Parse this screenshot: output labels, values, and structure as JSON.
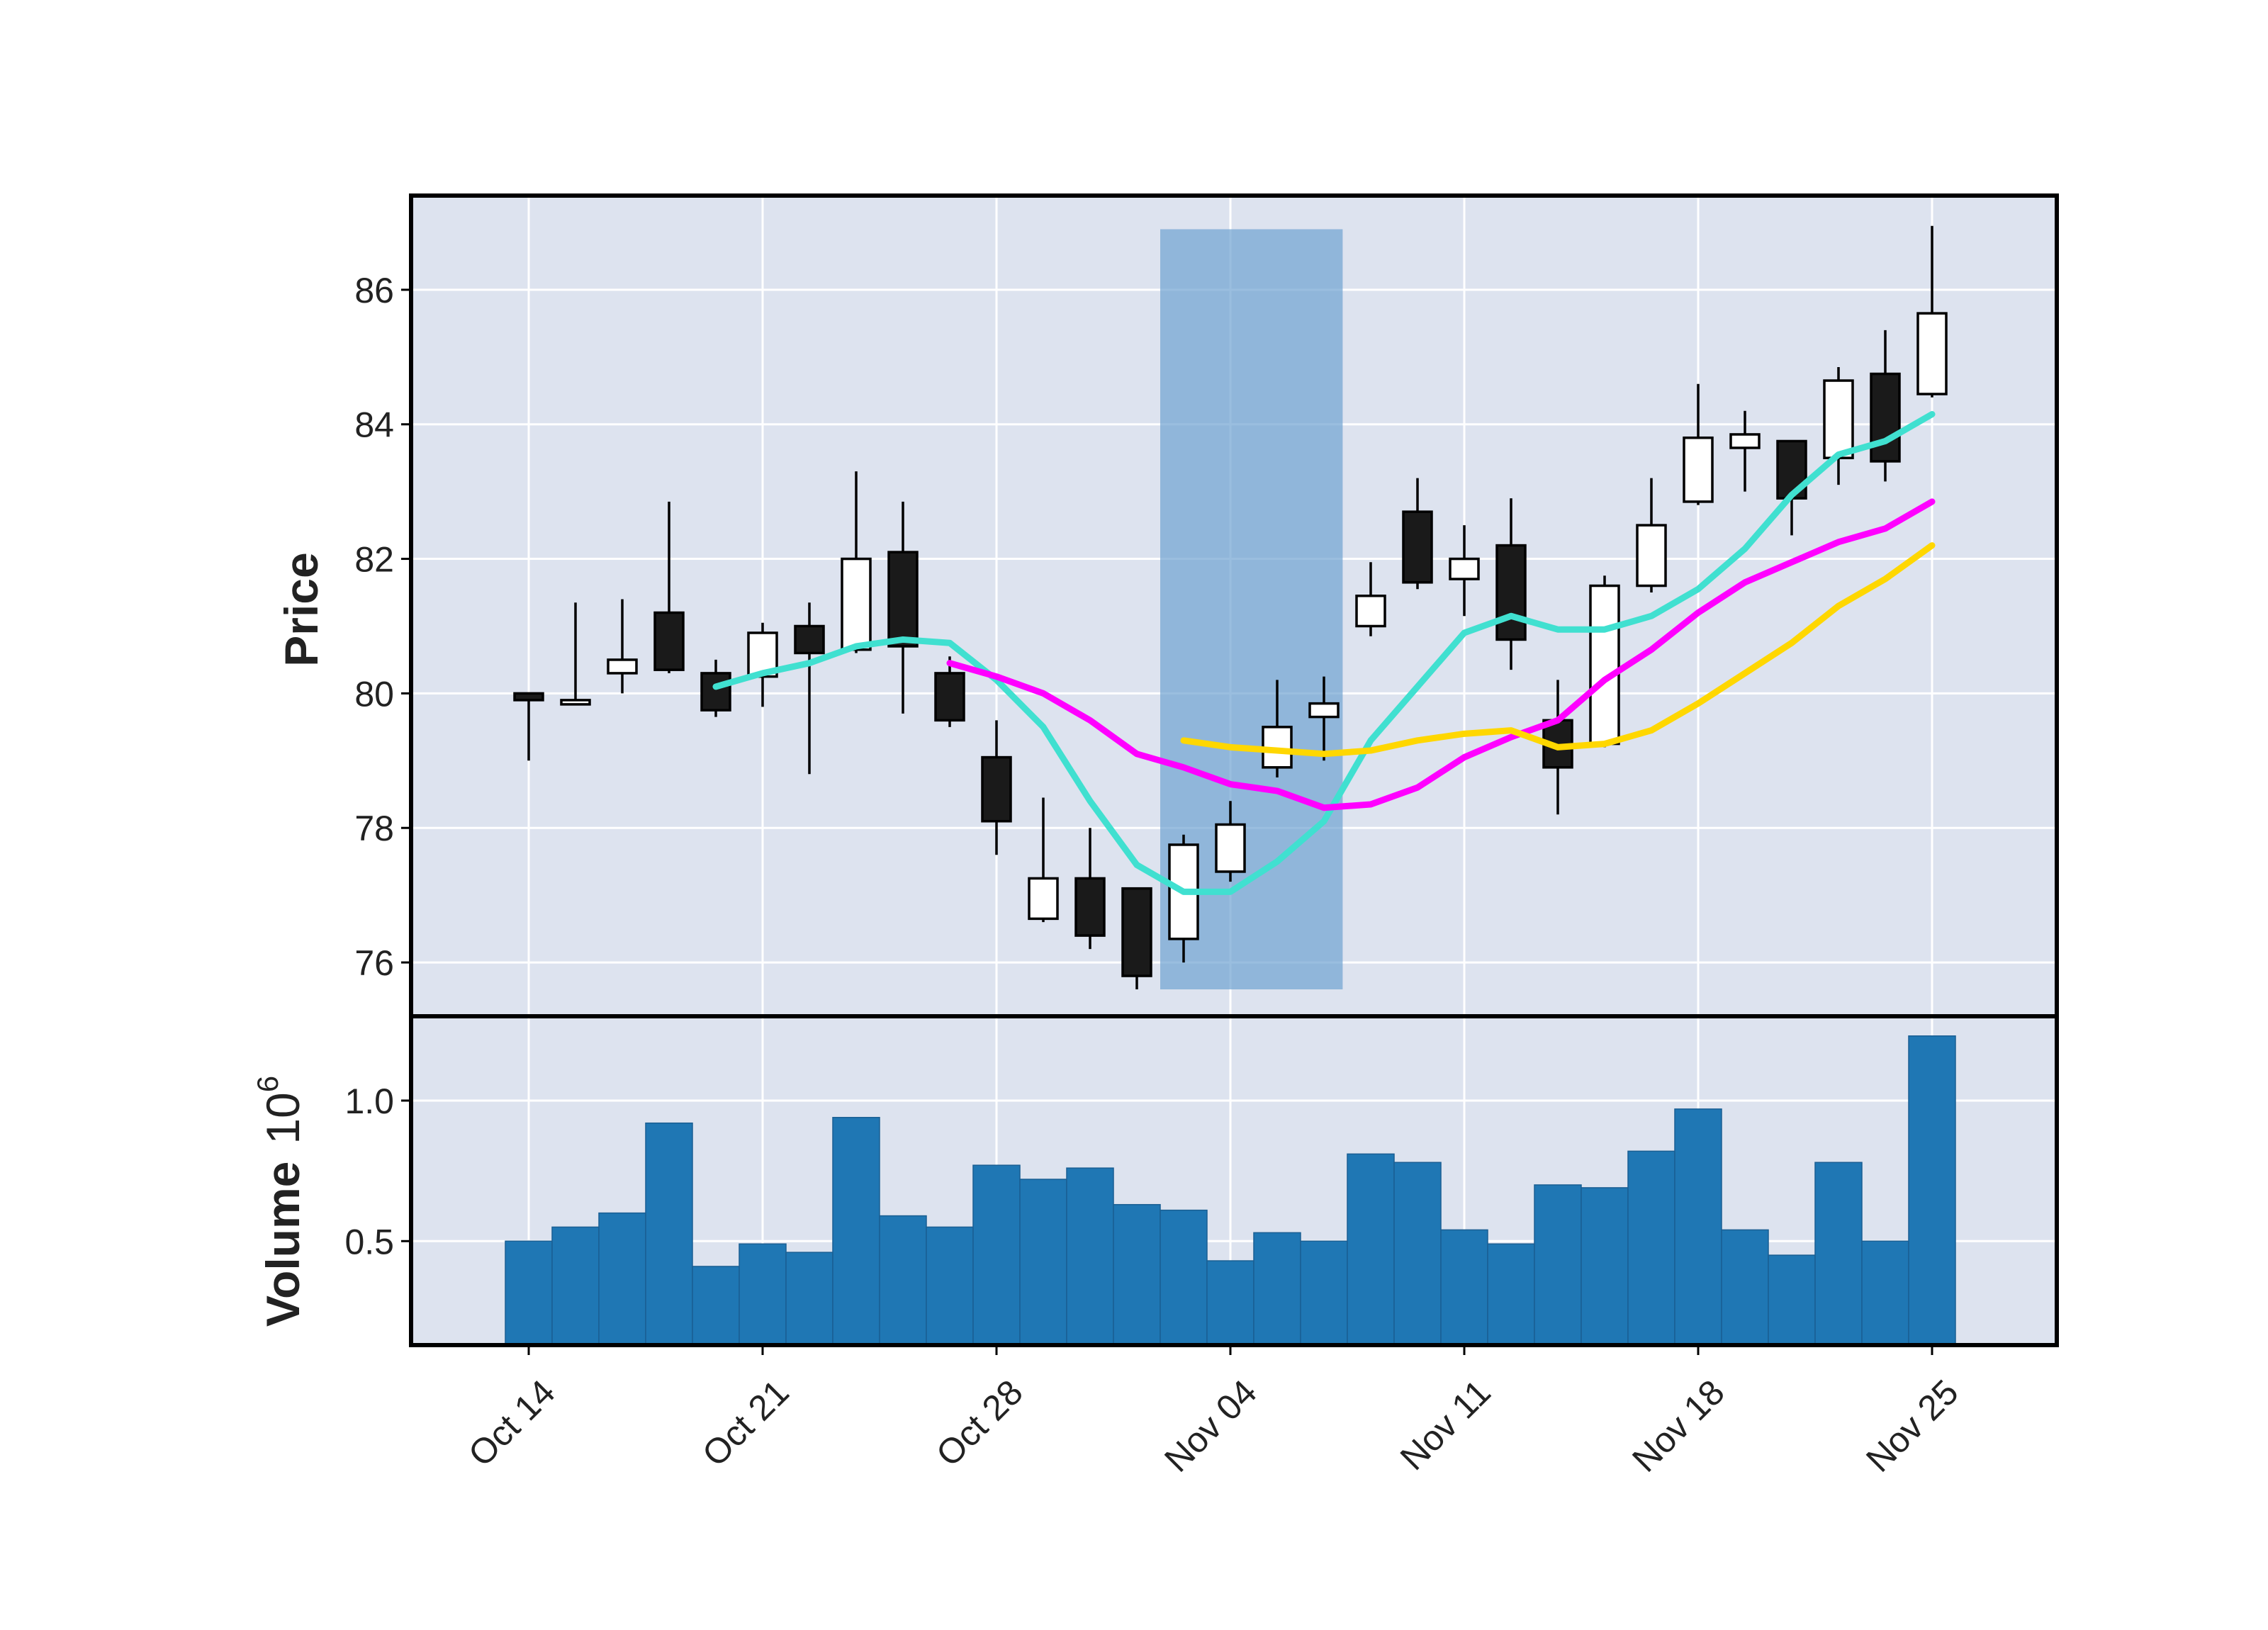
{
  "chart_data": {
    "type": "candlestick",
    "price_panel": {
      "ylabel": "Price",
      "ylim": [
        75.2,
        87.4
      ],
      "yticks": [
        76,
        78,
        80,
        82,
        84,
        86
      ]
    },
    "volume_panel": {
      "ylabel": "Volume",
      "ylabel_exponent_base": "10",
      "ylabel_exponent": "6",
      "ylim": [
        0.13,
        1.3
      ],
      "yticks": [
        0.5,
        1.0
      ],
      "ytick_labels": [
        "0.5",
        "1.0"
      ],
      "bar_color": "#1f77b4"
    },
    "x_axis": {
      "tick_labels": [
        "Oct 14",
        "Oct 21",
        "Oct 28",
        "Nov 04",
        "Nov 11",
        "Nov 18",
        "Nov 25"
      ],
      "tick_dates": [
        "2024-10-14",
        "2024-10-21",
        "2024-10-28",
        "2024-11-04",
        "2024-11-11",
        "2024-11-18",
        "2024-11-25"
      ]
    },
    "grid": true,
    "background": "#dde3ef",
    "up_color": "#ffffff",
    "down_color": "#1a1a1a",
    "highlight": {
      "start": "2024-11-01",
      "end": "2024-11-06",
      "color": "#6fa3d2",
      "ymin": 75.6,
      "ymax": 86.9
    },
    "candles": [
      {
        "date": "2024-10-14",
        "open": 80.0,
        "high": 80.0,
        "low": 79.0,
        "close": 79.9,
        "volume": 0.5
      },
      {
        "date": "2024-10-15",
        "open": 79.9,
        "high": 81.35,
        "low": 79.85,
        "close": 79.9,
        "volume": 0.55
      },
      {
        "date": "2024-10-16",
        "open": 80.3,
        "high": 81.4,
        "low": 80.0,
        "close": 80.5,
        "volume": 0.6
      },
      {
        "date": "2024-10-17",
        "open": 81.2,
        "high": 82.85,
        "low": 80.3,
        "close": 80.35,
        "volume": 0.92
      },
      {
        "date": "2024-10-18",
        "open": 80.3,
        "high": 80.5,
        "low": 79.65,
        "close": 79.75,
        "volume": 0.41
      },
      {
        "date": "2024-10-21",
        "open": 80.25,
        "high": 81.05,
        "low": 79.8,
        "close": 80.9,
        "volume": 0.49
      },
      {
        "date": "2024-10-22",
        "open": 81.0,
        "high": 81.35,
        "low": 78.8,
        "close": 80.6,
        "volume": 0.46
      },
      {
        "date": "2024-10-23",
        "open": 80.65,
        "high": 83.3,
        "low": 80.6,
        "close": 82.0,
        "volume": 0.94
      },
      {
        "date": "2024-10-24",
        "open": 82.1,
        "high": 82.85,
        "low": 79.7,
        "close": 80.7,
        "volume": 0.59
      },
      {
        "date": "2024-10-25",
        "open": 80.3,
        "high": 80.55,
        "low": 79.5,
        "close": 79.6,
        "volume": 0.55
      },
      {
        "date": "2024-10-28",
        "open": 79.05,
        "high": 79.6,
        "low": 77.6,
        "close": 78.1,
        "volume": 0.77
      },
      {
        "date": "2024-10-29",
        "open": 76.65,
        "high": 78.45,
        "low": 76.6,
        "close": 77.25,
        "volume": 0.72
      },
      {
        "date": "2024-10-30",
        "open": 77.25,
        "high": 78.0,
        "low": 76.2,
        "close": 76.4,
        "volume": 0.76
      },
      {
        "date": "2024-10-31",
        "open": 77.1,
        "high": 77.1,
        "low": 75.6,
        "close": 75.8,
        "volume": 0.63
      },
      {
        "date": "2024-11-01",
        "open": 76.35,
        "high": 77.9,
        "low": 76.0,
        "close": 77.75,
        "volume": 0.61
      },
      {
        "date": "2024-11-04",
        "open": 77.35,
        "high": 78.4,
        "low": 77.2,
        "close": 78.05,
        "volume": 0.43
      },
      {
        "date": "2024-11-05",
        "open": 78.9,
        "high": 80.2,
        "low": 78.75,
        "close": 79.5,
        "volume": 0.53
      },
      {
        "date": "2024-11-06",
        "open": 79.65,
        "high": 80.25,
        "low": 79.0,
        "close": 79.85,
        "volume": 0.5
      },
      {
        "date": "2024-11-07",
        "open": 81.0,
        "high": 81.95,
        "low": 80.85,
        "close": 81.45,
        "volume": 0.81
      },
      {
        "date": "2024-11-08",
        "open": 82.7,
        "high": 83.2,
        "low": 81.55,
        "close": 81.65,
        "volume": 0.78
      },
      {
        "date": "2024-11-11",
        "open": 81.7,
        "high": 82.5,
        "low": 81.15,
        "close": 82.0,
        "volume": 0.54
      },
      {
        "date": "2024-11-12",
        "open": 82.2,
        "high": 82.9,
        "low": 80.35,
        "close": 80.8,
        "volume": 0.49
      },
      {
        "date": "2024-11-13",
        "open": 79.6,
        "high": 80.2,
        "low": 78.2,
        "close": 78.9,
        "volume": 0.7
      },
      {
        "date": "2024-11-14",
        "open": 79.25,
        "high": 81.75,
        "low": 79.2,
        "close": 81.6,
        "volume": 0.69
      },
      {
        "date": "2024-11-15",
        "open": 81.6,
        "high": 83.2,
        "low": 81.5,
        "close": 82.5,
        "volume": 0.82
      },
      {
        "date": "2024-11-18",
        "open": 82.85,
        "high": 84.6,
        "low": 82.8,
        "close": 83.8,
        "volume": 0.97
      },
      {
        "date": "2024-11-19",
        "open": 83.65,
        "high": 84.2,
        "low": 83.0,
        "close": 83.85,
        "volume": 0.54
      },
      {
        "date": "2024-11-20",
        "open": 83.75,
        "high": 83.75,
        "low": 82.35,
        "close": 82.9,
        "volume": 0.45
      },
      {
        "date": "2024-11-21",
        "open": 83.5,
        "high": 84.85,
        "low": 83.1,
        "close": 84.65,
        "volume": 0.78
      },
      {
        "date": "2024-11-22",
        "open": 84.75,
        "high": 85.4,
        "low": 83.15,
        "close": 83.45,
        "volume": 0.5
      },
      {
        "date": "2024-11-25",
        "open": 84.45,
        "high": 86.95,
        "low": 84.4,
        "close": 85.65,
        "volume": 1.23
      }
    ],
    "moving_averages": [
      {
        "color": "#40e0d0",
        "start_index": 4,
        "values": [
          80.1,
          80.3,
          80.45,
          80.7,
          80.8,
          80.75,
          80.2,
          79.5,
          78.4,
          77.45,
          77.05,
          77.05,
          77.5,
          78.1,
          79.3,
          80.1,
          80.9,
          81.15,
          80.95,
          80.95,
          81.15,
          81.55,
          82.15,
          82.95,
          83.55,
          83.75,
          84.15
        ]
      },
      {
        "color": "#ff00ff",
        "start_index": 9,
        "values": [
          80.45,
          80.25,
          80.0,
          79.6,
          79.1,
          78.9,
          78.65,
          78.55,
          78.3,
          78.35,
          78.6,
          79.05,
          79.35,
          79.6,
          80.2,
          80.65,
          81.2,
          81.65,
          81.95,
          82.25,
          82.45,
          82.85
        ]
      },
      {
        "color": "#ffd700",
        "start_index": 14,
        "values": [
          79.3,
          79.2,
          79.15,
          79.1,
          79.15,
          79.3,
          79.4,
          79.45,
          79.2,
          79.25,
          79.45,
          79.85,
          80.3,
          80.75,
          81.3,
          81.7,
          82.2
        ]
      }
    ]
  }
}
